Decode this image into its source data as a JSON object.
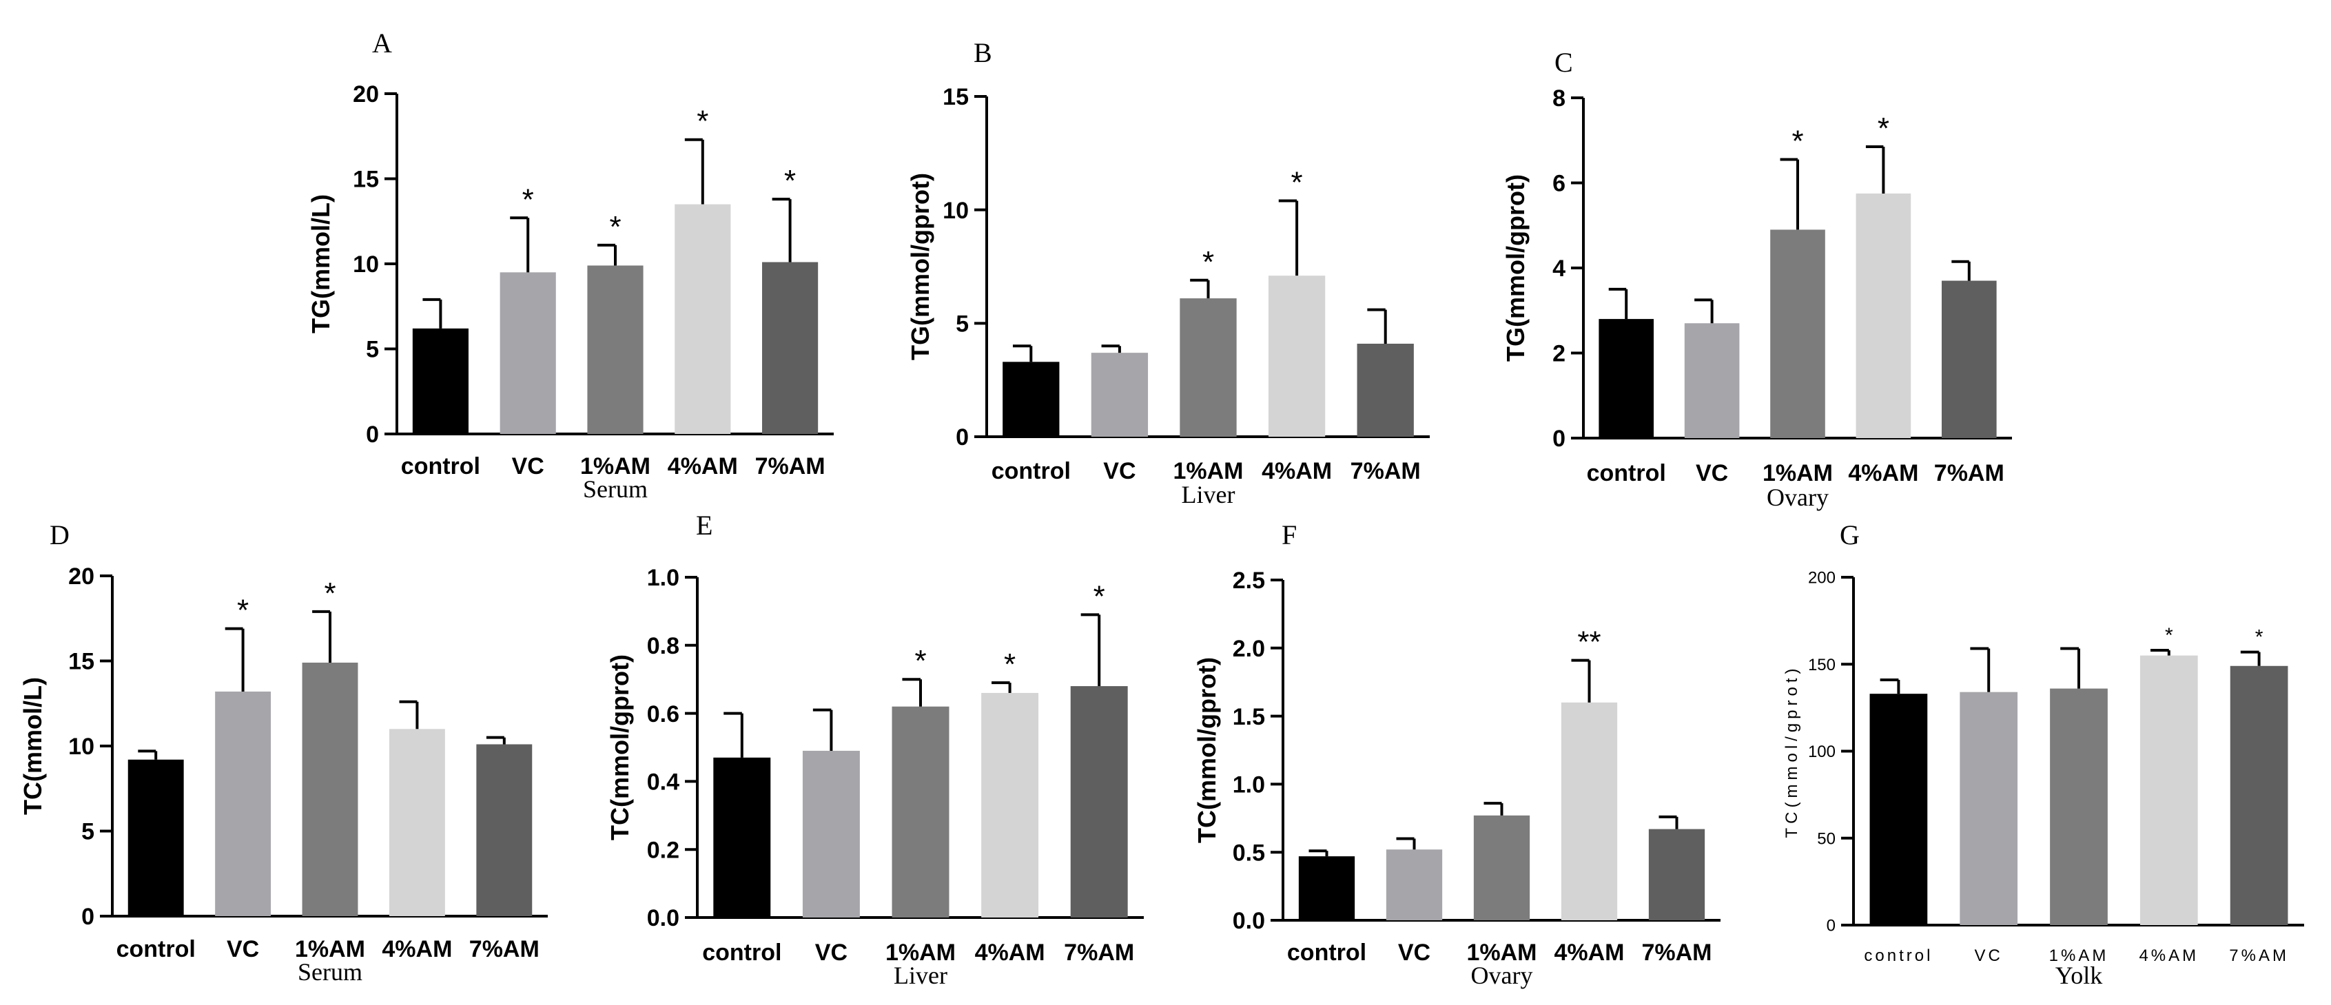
{
  "colors": {
    "control": "#000000",
    "VC": "#a6a6aa",
    "1%AM": "#7c7c7c",
    "4%AM": "#d4d4d4",
    "7%AM": "#5f5f5f",
    "axis": "#000000"
  },
  "chart_data": [
    {
      "type": "bar",
      "panel": "A",
      "title": "",
      "categories": [
        "control",
        "VC",
        "1%AM",
        "4%AM",
        "7%AM"
      ],
      "values": [
        6.2,
        9.5,
        9.9,
        13.5,
        10.1
      ],
      "errors": [
        1.7,
        3.2,
        1.2,
        3.8,
        3.7
      ],
      "significance": [
        "",
        "*",
        "*",
        "*",
        "*"
      ],
      "ylabel": "TG(mmol/L)",
      "xlabel": "Serum",
      "ylim": [
        0,
        20
      ],
      "yticks": [
        0,
        5,
        10,
        15,
        20
      ],
      "grid": false
    },
    {
      "type": "bar",
      "panel": "B",
      "title": "",
      "categories": [
        "control",
        "VC",
        "1%AM",
        "4%AM",
        "7%AM"
      ],
      "values": [
        3.3,
        3.7,
        6.1,
        7.1,
        4.1
      ],
      "errors": [
        0.7,
        0.3,
        0.8,
        3.3,
        1.5
      ],
      "significance": [
        "",
        "",
        "*",
        "*",
        ""
      ],
      "ylabel": "TG(mmol/gprot)",
      "xlabel": "Liver",
      "ylim": [
        0,
        15
      ],
      "yticks": [
        0,
        5,
        10,
        15
      ],
      "grid": false
    },
    {
      "type": "bar",
      "panel": "C",
      "title": "",
      "categories": [
        "control",
        "VC",
        "1%AM",
        "4%AM",
        "7%AM"
      ],
      "values": [
        2.8,
        2.7,
        4.9,
        5.75,
        3.7
      ],
      "errors": [
        0.7,
        0.55,
        1.65,
        1.1,
        0.45
      ],
      "significance": [
        "",
        "",
        "*",
        "*",
        ""
      ],
      "ylabel": "TG(mmol/gprot)",
      "xlabel": "Ovary",
      "ylim": [
        0,
        8
      ],
      "yticks": [
        0,
        2,
        4,
        6,
        8
      ],
      "grid": false
    },
    {
      "type": "bar",
      "panel": "D",
      "title": "",
      "categories": [
        "control",
        "VC",
        "1%AM",
        "4%AM",
        "7%AM"
      ],
      "values": [
        9.2,
        13.2,
        14.9,
        11.0,
        10.1
      ],
      "errors": [
        0.5,
        3.7,
        3.0,
        1.6,
        0.4
      ],
      "significance": [
        "",
        "*",
        "*",
        "",
        ""
      ],
      "ylabel": "TC(mmol/L)",
      "xlabel": "Serum",
      "ylim": [
        0,
        20
      ],
      "yticks": [
        0,
        5,
        10,
        15,
        20
      ],
      "grid": false
    },
    {
      "type": "bar",
      "panel": "E",
      "title": "",
      "categories": [
        "control",
        "VC",
        "1%AM",
        "4%AM",
        "7%AM"
      ],
      "values": [
        0.47,
        0.49,
        0.62,
        0.66,
        0.68
      ],
      "errors": [
        0.13,
        0.12,
        0.08,
        0.03,
        0.21
      ],
      "significance": [
        "",
        "",
        "*",
        "*",
        "*"
      ],
      "ylabel": "TC(mmol/gprot)",
      "xlabel": "Liver",
      "ylim": [
        0,
        1.0
      ],
      "yticks": [
        "0.0",
        "0.2",
        "0.4",
        "0.6",
        "0.8",
        "1.0"
      ],
      "grid": false
    },
    {
      "type": "bar",
      "panel": "F",
      "title": "",
      "categories": [
        "control",
        "VC",
        "1%AM",
        "4%AM",
        "7%AM"
      ],
      "values": [
        0.47,
        0.52,
        0.77,
        1.6,
        0.67
      ],
      "errors": [
        0.04,
        0.08,
        0.09,
        0.31,
        0.09
      ],
      "significance": [
        "",
        "",
        "",
        "**",
        ""
      ],
      "ylabel": "TC(mmol/gprot)",
      "xlabel": "Ovary",
      "ylim": [
        0,
        2.5
      ],
      "yticks": [
        "0.0",
        "0.5",
        "1.0",
        "1.5",
        "2.0",
        "2.5"
      ],
      "grid": false
    },
    {
      "type": "bar",
      "panel": "G",
      "title": "",
      "categories": [
        "control",
        "VC",
        "1%AM",
        "4%AM",
        "7%AM"
      ],
      "values": [
        133,
        134,
        136,
        155,
        149
      ],
      "errors": [
        8,
        25,
        23,
        3,
        8
      ],
      "significance": [
        "",
        "",
        "",
        "*",
        "*"
      ],
      "ylabel": "TC(mmol/gprot)",
      "xlabel": "Yolk",
      "ylim": [
        0,
        200
      ],
      "yticks": [
        0,
        50,
        100,
        150,
        200
      ],
      "grid": false
    }
  ]
}
